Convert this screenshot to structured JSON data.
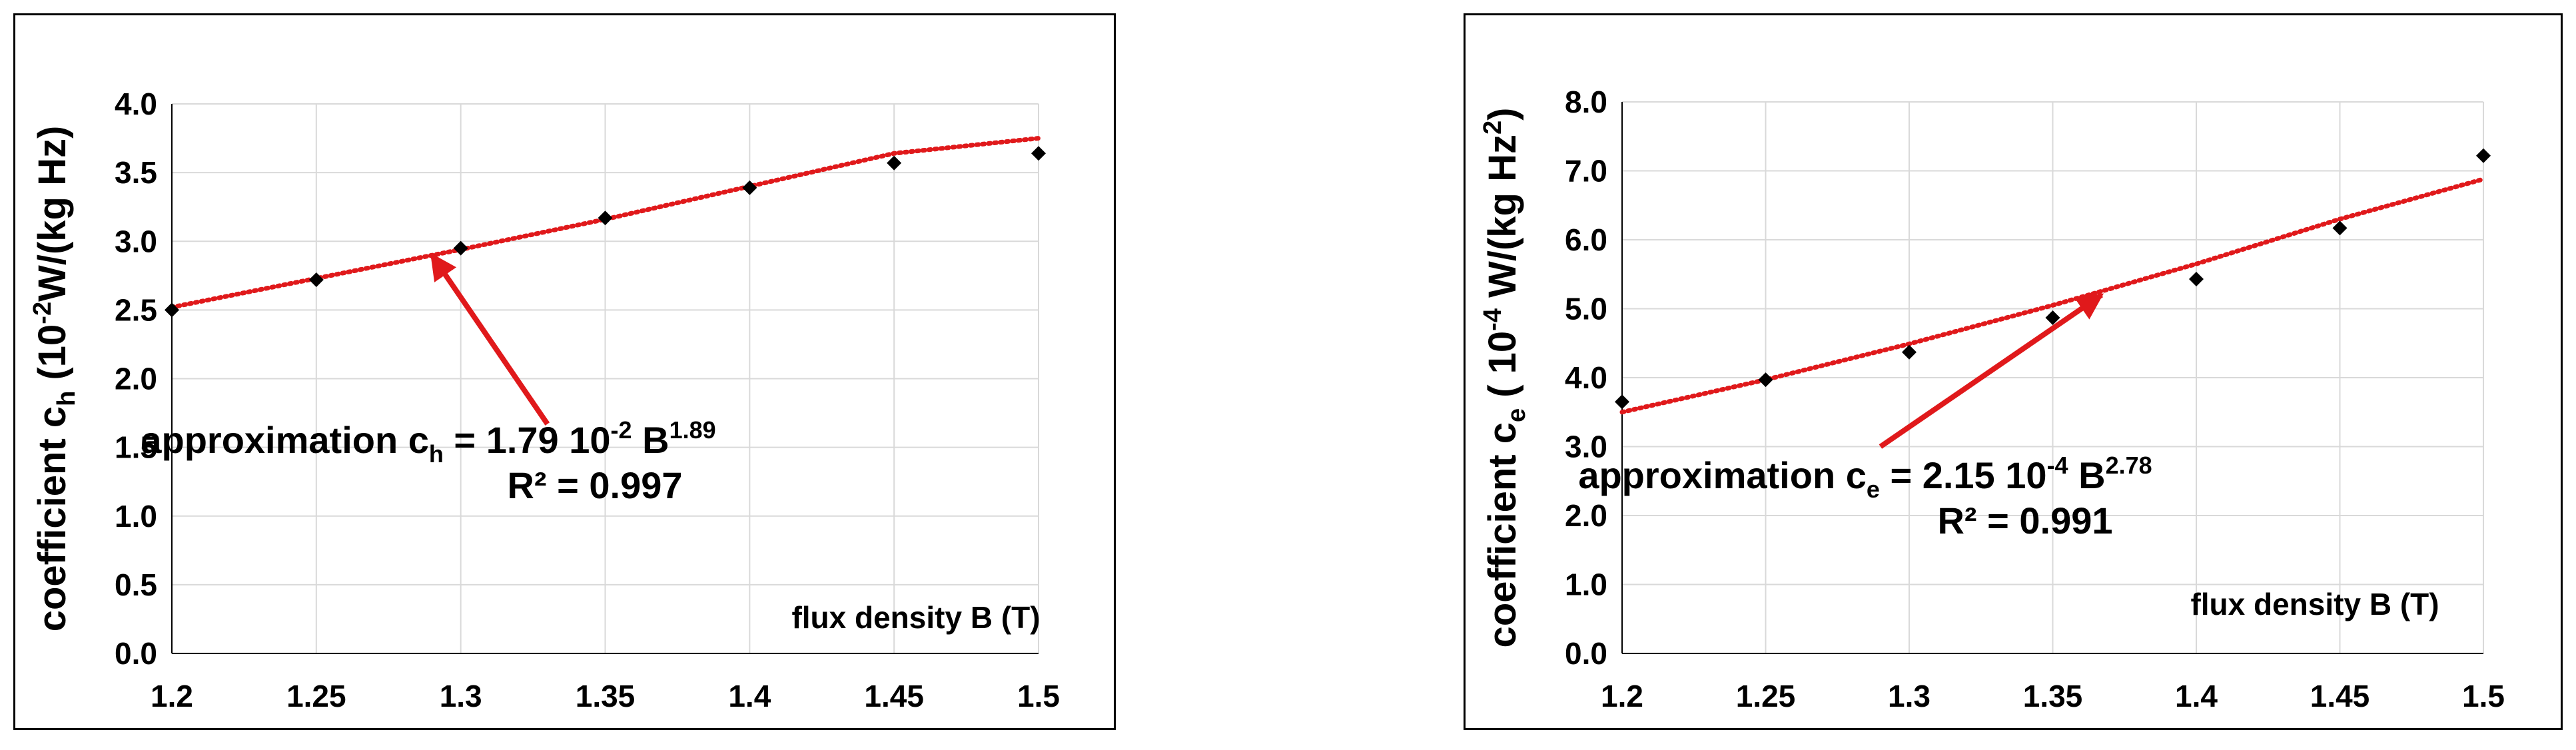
{
  "chart_data": [
    {
      "type": "scatter",
      "xlabel": "flux density B (T)",
      "ylabel": "coefficient c",
      "ylabel_sub": "h",
      "ylabel_unit": "(10",
      "ylabel_unit_sup": "-2",
      "ylabel_unit_rest": "W/(kg Hz)",
      "xlim": [
        1.2,
        1.5
      ],
      "ylim": [
        0.0,
        4.0
      ],
      "x_ticks": [
        "1.2",
        "1.25",
        "1.3",
        "1.35",
        "1.4",
        "1.45",
        "1.5"
      ],
      "y_ticks": [
        "0.0",
        "0.5",
        "1.0",
        "1.5",
        "2.0",
        "2.5",
        "3.0",
        "3.5",
        "4.0"
      ],
      "grid": true,
      "x": [
        1.2,
        1.25,
        1.3,
        1.35,
        1.4,
        1.45,
        1.5
      ],
      "y": [
        2.5,
        2.72,
        2.95,
        3.17,
        3.39,
        3.57,
        3.64
      ],
      "trendline": {
        "type": "power",
        "coefficient": 1.79,
        "coefficient_scale": 0.01,
        "exponent": 1.89,
        "x": [
          1.2,
          1.25,
          1.3,
          1.35,
          1.4,
          1.45,
          1.5
        ],
        "y": [
          2.52,
          2.73,
          2.94,
          3.16,
          3.4,
          3.64,
          3.75
        ]
      },
      "annotation": {
        "text": "approximation c",
        "sub": "h",
        "middle": " = 1.79 10",
        "sup1": "-2",
        "tail": " B",
        "sup2": "1.89",
        "r2": "R² = 0.997",
        "arrow_to": [
          1.29,
          2.9
        ],
        "arrow_from": [
          1.33,
          1.67
        ]
      },
      "colors": {
        "points": "#000000",
        "trendline": "#e0191b",
        "arrow": "#e0191b",
        "grid": "#d9d9d9"
      }
    },
    {
      "type": "scatter",
      "xlabel": "flux density B (T)",
      "ylabel": "coefficient c",
      "ylabel_sub": "e",
      "ylabel_unit": "( 10",
      "ylabel_unit_sup": "-4",
      "ylabel_unit_rest": " W/(kg Hz",
      "ylabel_unit_sup2": "2",
      "ylabel_unit_end": ")",
      "xlim": [
        1.2,
        1.5
      ],
      "ylim": [
        0.0,
        8.0
      ],
      "x_ticks": [
        "1.2",
        "1.25",
        "1.3",
        "1.35",
        "1.4",
        "1.45",
        "1.5"
      ],
      "y_ticks": [
        "0.0",
        "1.0",
        "2.0",
        "3.0",
        "4.0",
        "5.0",
        "6.0",
        "7.0",
        "8.0"
      ],
      "grid": true,
      "x": [
        1.2,
        1.25,
        1.3,
        1.35,
        1.4,
        1.45,
        1.5
      ],
      "y": [
        3.65,
        3.97,
        4.37,
        4.87,
        5.43,
        6.17,
        7.22
      ],
      "trendline": {
        "type": "power",
        "coefficient": 2.15,
        "coefficient_scale": 0.0001,
        "exponent": 2.78,
        "x": [
          1.2,
          1.25,
          1.3,
          1.35,
          1.4,
          1.45,
          1.5
        ],
        "y": [
          3.5,
          3.97,
          4.49,
          5.05,
          5.65,
          6.3,
          6.88
        ]
      },
      "annotation": {
        "text": "approximation c",
        "sub": "e",
        "middle": " = 2.15 10",
        "sup1": "-4",
        "tail": " B",
        "sup2": "2.78",
        "r2": "R² = 0.991",
        "arrow_to": [
          1.367,
          5.2
        ],
        "arrow_from": [
          1.29,
          3.0
        ]
      },
      "colors": {
        "points": "#000000",
        "trendline": "#e0191b",
        "arrow": "#e0191b",
        "grid": "#d9d9d9"
      }
    }
  ]
}
